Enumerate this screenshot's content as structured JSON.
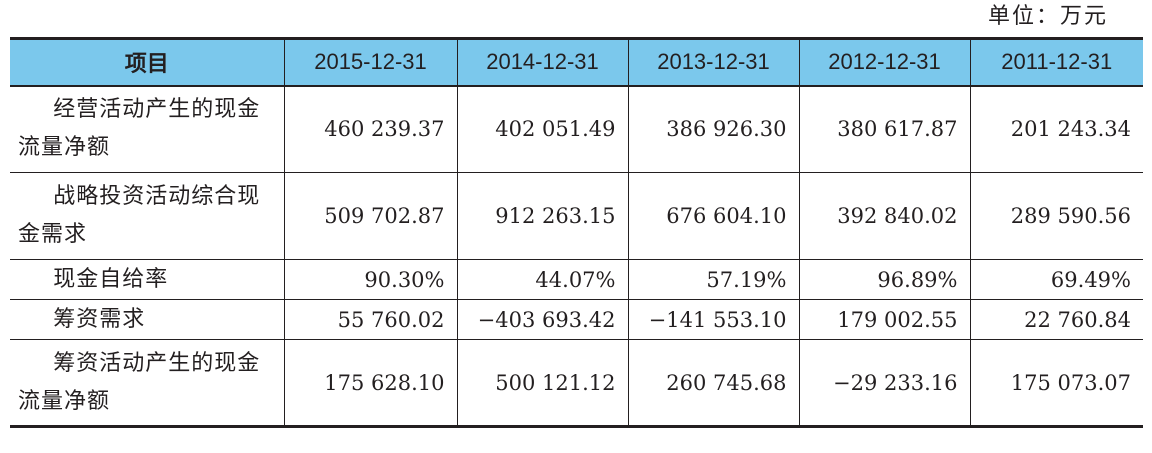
{
  "unit_note": "单位：万元",
  "table": {
    "headers": [
      "项目",
      "2015-12-31",
      "2014-12-31",
      "2013-12-31",
      "2012-12-31",
      "2011-12-31"
    ],
    "rows": [
      {
        "label": "经营活动产生的现金流量净额",
        "values": [
          "460 239.37",
          "402 051.49",
          "386 926.30",
          "380 617.87",
          "201 243.34"
        ]
      },
      {
        "label": "战略投资活动综合现金需求",
        "values": [
          "509 702.87",
          "912 263.15",
          "676 604.10",
          "392 840.02",
          "289 590.56"
        ]
      },
      {
        "label": "现金自给率",
        "values": [
          "90.30%",
          "44.07%",
          "57.19%",
          "96.89%",
          "69.49%"
        ]
      },
      {
        "label": "筹资需求",
        "values": [
          "55 760.02",
          "−403 693.42",
          "−141 553.10",
          "179 002.55",
          "22 760.84"
        ]
      },
      {
        "label": "筹资活动产生的现金流量净额",
        "values": [
          "175 628.10",
          "500 121.12",
          "260 745.68",
          "−29 233.16",
          "175 073.07"
        ]
      }
    ]
  }
}
